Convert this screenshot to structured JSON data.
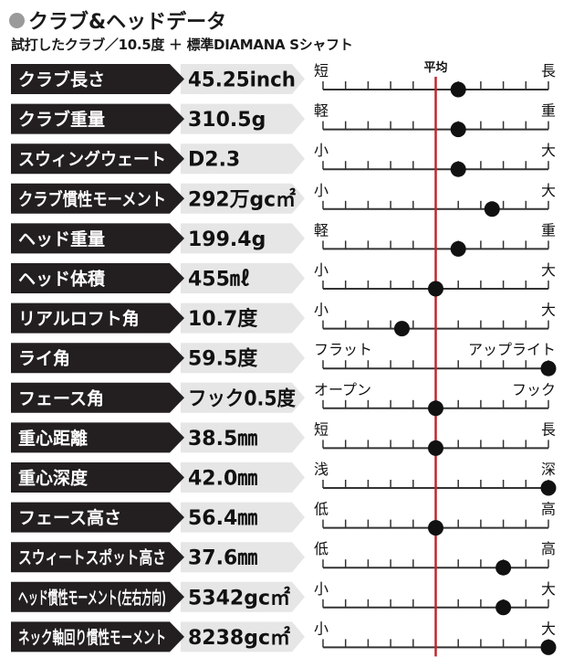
{
  "title": "クラブ&ヘッドデータ",
  "subtitle": "試打したクラブ／10.5度 ＋ 標準DIAMANA Sシャフト",
  "average_label": "平均",
  "colors": {
    "label_bg": "#231f20",
    "value_bg": "#e6e6e6",
    "average_line": "#c1272d",
    "dot": "#111111",
    "scale": "#333333"
  },
  "chart_data": {
    "type": "scatter",
    "title": "クラブ&ヘッドデータ",
    "scale": {
      "min": 0,
      "max": 10,
      "average": 5
    },
    "grid": false,
    "rows": [
      {
        "label": "クラブ長さ",
        "value": "45.25inch",
        "left": "短",
        "right": "長",
        "position": 6
      },
      {
        "label": "クラブ重量",
        "value": "310.5g",
        "left": "軽",
        "right": "重",
        "position": 6
      },
      {
        "label": "スウィングウェート",
        "value": "D2.3",
        "left": "小",
        "right": "大",
        "position": 6
      },
      {
        "label": "クラブ慣性モーメント",
        "value": "292万gc㎡",
        "left": "小",
        "right": "大",
        "position": 7.5
      },
      {
        "label": "ヘッド重量",
        "value": "199.4g",
        "left": "軽",
        "right": "重",
        "position": 6
      },
      {
        "label": "ヘッド体積",
        "value": "455㎖",
        "left": "小",
        "right": "大",
        "position": 5
      },
      {
        "label": "リアルロフト角",
        "value": "10.7度",
        "left": "小",
        "right": "大",
        "position": 3.5
      },
      {
        "label": "ライ角",
        "value": "59.5度",
        "left": "フラット",
        "right": "アップライト",
        "position": 10
      },
      {
        "label": "フェース角",
        "value": "フック0.5度",
        "left": "オープン",
        "right": "フック",
        "position": 5
      },
      {
        "label": "重心距離",
        "value": "38.5㎜",
        "left": "短",
        "right": "長",
        "position": 5
      },
      {
        "label": "重心深度",
        "value": "42.0㎜",
        "left": "浅",
        "right": "深",
        "position": 10
      },
      {
        "label": "フェース高さ",
        "value": "56.4㎜",
        "left": "低",
        "right": "高",
        "position": 5
      },
      {
        "label": "スウィートスポット高さ",
        "value": "37.6㎜",
        "left": "低",
        "right": "高",
        "position": 8
      },
      {
        "label": "ヘッド慣性モーメント(左右方向)",
        "value": "5342gc㎡",
        "left": "小",
        "right": "大",
        "position": 8
      },
      {
        "label": "ネック軸回り慣性モーメント",
        "value": "8238gc㎡",
        "left": "小",
        "right": "大",
        "position": 10
      }
    ]
  }
}
